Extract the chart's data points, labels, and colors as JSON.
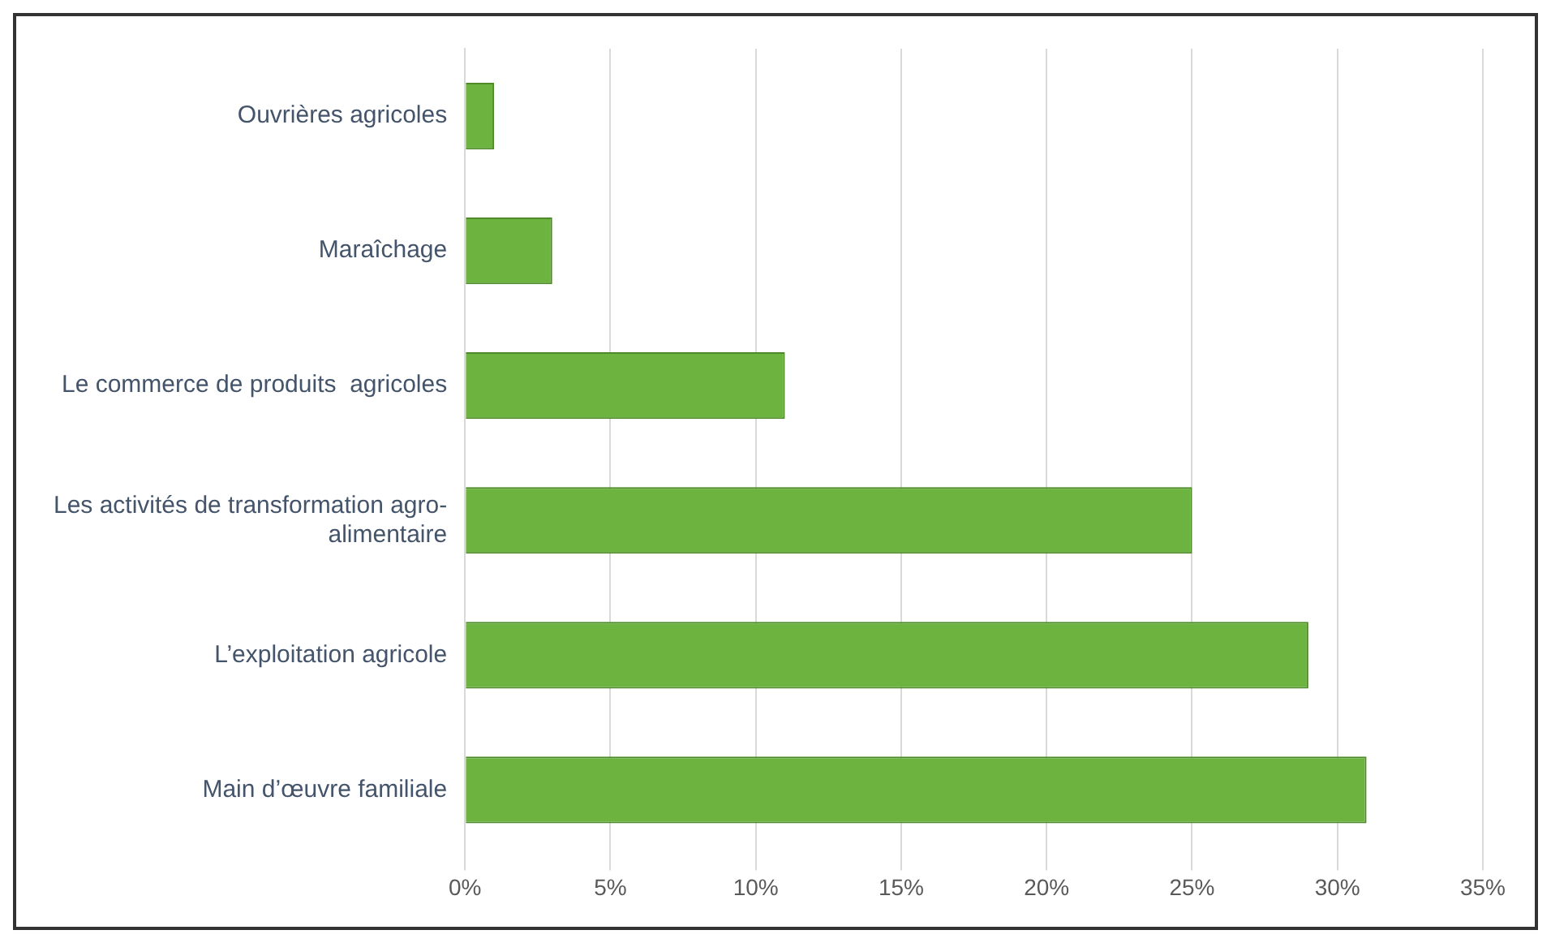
{
  "chart_data": {
    "type": "bar",
    "orientation": "horizontal",
    "categories": [
      "Ouvrières agricoles",
      "Maraîchage",
      "Le commerce de produits  agricoles",
      "Les activités de transformation agro-alimentaire",
      "L’exploitation agricole",
      "Main d’œuvre familiale"
    ],
    "values": [
      1,
      3,
      11,
      25,
      29,
      31
    ],
    "color": "#6db33f",
    "xlim": [
      0,
      35
    ],
    "xticks": [
      {
        "value": 0,
        "label": "0%"
      },
      {
        "value": 5,
        "label": "5%"
      },
      {
        "value": 10,
        "label": "10%"
      },
      {
        "value": 15,
        "label": "15%"
      },
      {
        "value": 20,
        "label": "20%"
      },
      {
        "value": 25,
        "label": "25%"
      },
      {
        "value": 30,
        "label": "30%"
      },
      {
        "value": 35,
        "label": "35%"
      }
    ],
    "grid": "x",
    "legend": false
  }
}
